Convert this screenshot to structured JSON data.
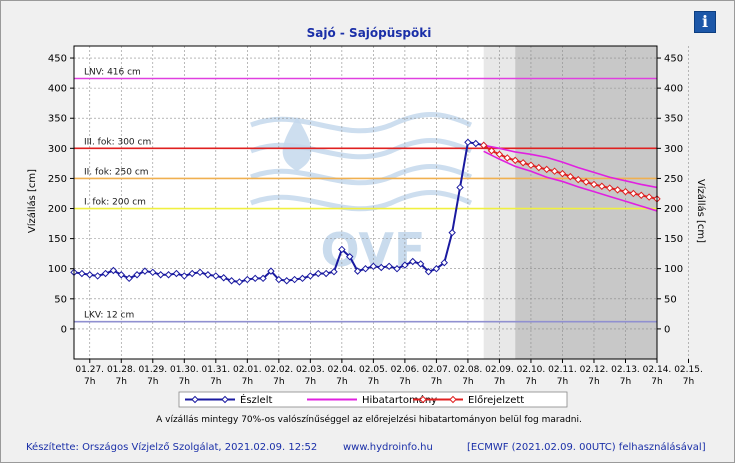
{
  "info_label": "i",
  "footer": {
    "credit": "Készítette: Országos Vízjelző Szolgálat, 2021.02.09. 12:52",
    "url": "www.hydroinfo.hu",
    "model": "[ECMWF (2021.02.09. 00UTC) felhasználásával]"
  },
  "chart_data": {
    "type": "line",
    "title": "Sajó - Sajópüspöki",
    "ylabel": "Vízállás [cm]",
    "ylabel_right": "Vízállás [cm]",
    "ylim": [
      -50,
      470
    ],
    "yticks": [
      0,
      50,
      100,
      150,
      200,
      250,
      300,
      350,
      400,
      450
    ],
    "xlim": [
      0,
      18.5
    ],
    "xtick_labels": [
      "01.27.",
      "01.28.",
      "01.29.",
      "01.30.",
      "01.31.",
      "02.01.",
      "02.02.",
      "02.03.",
      "02.04.",
      "02.05.",
      "02.06.",
      "02.07.",
      "02.08.",
      "02.09.",
      "02.10.",
      "02.11.",
      "02.12.",
      "02.13.",
      "02.14.",
      "02.15."
    ],
    "xtick_sublabel": "7h",
    "grid": true,
    "forecast_start": 13.0,
    "forecast_dark_start": 14.0,
    "reference_lines": [
      {
        "name": "LNV: 416 cm",
        "value": 416,
        "color": "#e040e0"
      },
      {
        "name": "III. fok: 300 cm",
        "value": 300,
        "color": "#e02020"
      },
      {
        "name": "II. fok: 250 cm",
        "value": 250,
        "color": "#f0b050"
      },
      {
        "name": "I. fok: 200 cm",
        "value": 200,
        "color": "#f0f040"
      },
      {
        "name": "LKV: 12 cm",
        "value": 12,
        "color": "#9090d0"
      }
    ],
    "series": [
      {
        "name": "Észlelt",
        "color": "#1a1aa0",
        "x": [
          0,
          0.25,
          0.5,
          0.75,
          1.0,
          1.25,
          1.5,
          1.75,
          2.0,
          2.25,
          2.5,
          2.75,
          3.0,
          3.25,
          3.5,
          3.75,
          4.0,
          4.25,
          4.5,
          4.75,
          5.0,
          5.25,
          5.5,
          5.75,
          6.0,
          6.25,
          6.5,
          6.75,
          7.0,
          7.25,
          7.5,
          7.75,
          8.0,
          8.25,
          8.5,
          8.75,
          9.0,
          9.25,
          9.5,
          9.75,
          10.0,
          10.25,
          10.5,
          10.75,
          11.0,
          11.25,
          11.5,
          11.75,
          12.0,
          12.25,
          12.5,
          12.75,
          13.0
        ],
        "values": [
          94,
          92,
          90,
          88,
          92,
          97,
          90,
          84,
          90,
          96,
          94,
          90,
          90,
          92,
          88,
          92,
          94,
          90,
          88,
          85,
          80,
          78,
          82,
          84,
          84,
          96,
          82,
          80,
          82,
          84,
          88,
          92,
          92,
          95,
          132,
          120,
          96,
          100,
          104,
          102,
          104,
          100,
          106,
          112,
          108,
          95,
          100,
          110,
          160,
          235,
          310,
          308,
          305
        ]
      },
      {
        "name": "Hibatartomány",
        "color": "#e020e0",
        "x": [
          13.0,
          13.5,
          14.0,
          14.5,
          15.0,
          15.5,
          16.0,
          16.5,
          17.0,
          17.5,
          18.0,
          18.5
        ],
        "values": [
          300,
          294,
          288,
          280,
          272,
          262,
          252,
          243,
          235,
          226,
          218,
          210
        ],
        "upper": [
          305,
          300,
          294,
          290,
          285,
          277,
          268,
          260,
          252,
          246,
          240,
          235
        ],
        "lower": [
          295,
          282,
          270,
          262,
          252,
          245,
          236,
          228,
          220,
          212,
          204,
          196
        ]
      },
      {
        "name": "Előrejelzett",
        "color": "#e02020",
        "x": [
          13.0,
          13.25,
          13.5,
          13.75,
          14.0,
          14.25,
          14.5,
          14.75,
          15.0,
          15.25,
          15.5,
          15.75,
          16.0,
          16.25,
          16.5,
          16.75,
          17.0,
          17.25,
          17.5,
          17.75,
          18.0,
          18.25,
          18.5
        ],
        "values": [
          305,
          296,
          290,
          284,
          280,
          276,
          272,
          268,
          265,
          262,
          258,
          253,
          248,
          244,
          240,
          237,
          234,
          231,
          228,
          225,
          222,
          219,
          216
        ]
      }
    ],
    "legend_position": "bottom",
    "note": "A vízállás mintegy 70%-os valószínűséggel az előrejelzési hibatartományon belül fog maradni.",
    "watermark": "OVF"
  }
}
